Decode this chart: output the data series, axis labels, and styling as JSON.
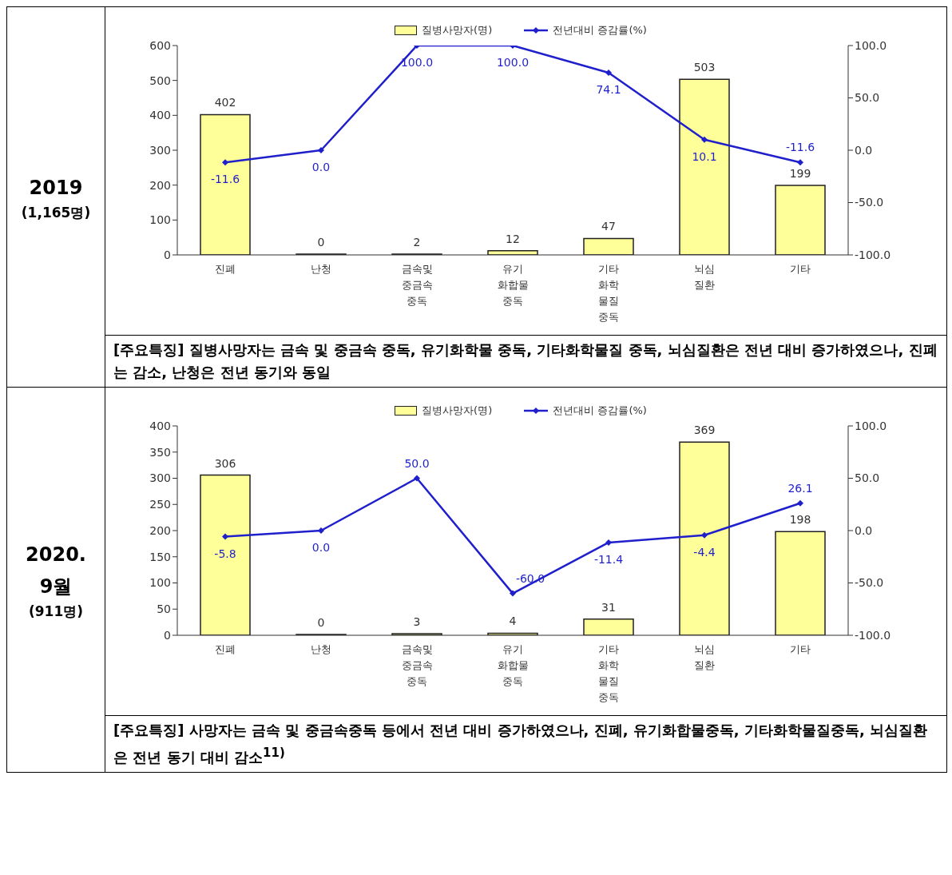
{
  "chart_data": [
    {
      "type": "bar",
      "title": "2019",
      "subtitle": "(1,165명)",
      "categories": [
        "진폐",
        "난청",
        "금속및\n중금속\n중독",
        "유기\n화합물\n중독",
        "기타\n화학\n물질\n중독",
        "뇌심\n질환",
        "기타"
      ],
      "series": [
        {
          "name": "질병사망자(명)",
          "color": "#ffff99",
          "values": [
            402,
            0,
            2,
            12,
            47,
            503,
            199
          ],
          "value_labels": [
            "402",
            "0",
            "2",
            "12",
            "47",
            "503",
            "199"
          ]
        },
        {
          "name": "전년대비 증감률(%)",
          "type": "line",
          "axis": "y2",
          "color": "#1f1fcc",
          "values": [
            -11.6,
            0,
            100,
            100,
            74.1,
            10.1,
            -11.6
          ],
          "value_labels": [
            "-11.6",
            "0.0",
            "100.0",
            "100.0",
            "74.1",
            "10.1",
            "-11.6"
          ]
        }
      ],
      "ylim": [
        0,
        600
      ],
      "yticks": [
        0,
        100,
        200,
        300,
        400,
        500,
        600
      ],
      "y2lim": [
        -100,
        100
      ],
      "y2ticks": [
        {
          "value": -100,
          "label": "-100.0"
        },
        {
          "value": -50,
          "label": "-50.0"
        },
        {
          "value": 0,
          "label": "0.0"
        },
        {
          "value": 50,
          "label": "50.0"
        },
        {
          "value": 100,
          "label": "100.0"
        }
      ],
      "legend": "top",
      "marker": "diamond",
      "grid": false,
      "annotations": [
        "[주요특징] 질병사망자는 금속 및 중금속 중독, 유기화학물 중독, 기타화학물질 중독, 뇌심질환은 전년 대비 증가하였으나, 진폐는 감소, 난청은 전년 동기와 동일"
      ]
    },
    {
      "type": "bar",
      "title": "2020.\n9월",
      "subtitle": "(911명)",
      "categories": [
        "진폐",
        "난청",
        "금속및\n중금속\n중독",
        "유기\n화합물\n중독",
        "기타\n화학\n물질\n중독",
        "뇌심\n질환",
        "기타"
      ],
      "series": [
        {
          "name": "질병사망자(명)",
          "color": "#ffff99",
          "values": [
            306,
            0,
            3,
            4,
            31,
            369,
            198
          ],
          "value_labels": [
            "306",
            "0",
            "3",
            "4",
            "31",
            "369",
            "198"
          ]
        },
        {
          "name": "전년대비 증감률(%)",
          "type": "line",
          "axis": "y2",
          "color": "#1f1fcc",
          "values": [
            -5.8,
            0,
            50,
            -60,
            -11.4,
            -4.4,
            26.1
          ],
          "value_labels": [
            "-5.8",
            "0.0",
            "50.0",
            "-60.0",
            "-11.4",
            "-4.4",
            "26.1"
          ]
        }
      ],
      "ylim": [
        0,
        400
      ],
      "yticks": [
        0,
        50,
        100,
        150,
        200,
        250,
        300,
        350,
        400
      ],
      "y2lim": [
        -100,
        100
      ],
      "y2ticks": [
        {
          "value": -100,
          "label": "-100.0"
        },
        {
          "value": -50,
          "label": "-50.0"
        },
        {
          "value": 0,
          "label": "0.0"
        },
        {
          "value": 50,
          "label": "50.0"
        },
        {
          "value": 100,
          "label": "100.0"
        }
      ],
      "legend": "top",
      "marker": "diamond",
      "grid": false,
      "annotations": [
        "[주요특징] 사망자는 금속 및 중금속중독 등에서 전년 대비 증가하였으나, 진폐, 유기화합물중독, 기타화학물질중독, 뇌심질환은 전년 동기 대비 감소$^{11)}$"
      ]
    }
  ]
}
